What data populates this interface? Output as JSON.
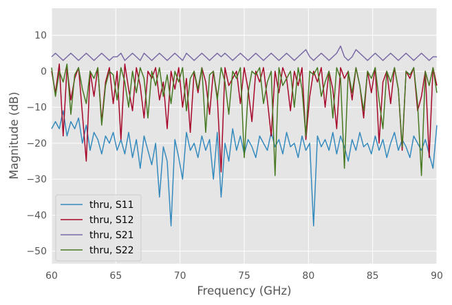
{
  "chart_data": {
    "type": "line",
    "title": "",
    "xlabel": "Frequency (GHz)",
    "ylabel": "Magnitude (dB)",
    "xlim": [
      60,
      90
    ],
    "ylim": [
      -53.5,
      17.5
    ],
    "grid": true,
    "legend_position": "lower-left",
    "x_ticks": [
      60,
      65,
      70,
      75,
      80,
      85,
      90
    ],
    "y_ticks": [
      10,
      0,
      -10,
      -20,
      -30,
      -40,
      -50
    ],
    "x_tick_labels": [
      "60",
      "65",
      "70",
      "75",
      "80",
      "85",
      "90"
    ],
    "y_tick_labels": [
      "10",
      "0",
      "−10",
      "−20",
      "−30",
      "−40",
      "−50"
    ],
    "x": [
      60.0,
      60.3,
      60.6,
      60.9,
      61.2,
      61.5,
      61.8,
      62.1,
      62.4,
      62.7,
      63.0,
      63.3,
      63.6,
      63.9,
      64.2,
      64.5,
      64.8,
      65.1,
      65.4,
      65.7,
      66.0,
      66.3,
      66.6,
      66.9,
      67.2,
      67.5,
      67.8,
      68.1,
      68.4,
      68.7,
      69.0,
      69.3,
      69.6,
      69.9,
      70.2,
      70.5,
      70.8,
      71.1,
      71.4,
      71.7,
      72.0,
      72.3,
      72.6,
      72.9,
      73.2,
      73.5,
      73.8,
      74.1,
      74.4,
      74.7,
      75.0,
      75.3,
      75.6,
      75.9,
      76.2,
      76.5,
      76.8,
      77.1,
      77.4,
      77.7,
      78.0,
      78.3,
      78.6,
      78.9,
      79.2,
      79.5,
      79.8,
      80.1,
      80.4,
      80.7,
      81.0,
      81.3,
      81.6,
      81.9,
      82.2,
      82.5,
      82.8,
      83.1,
      83.4,
      83.7,
      84.0,
      84.3,
      84.6,
      84.9,
      85.2,
      85.5,
      85.8,
      86.1,
      86.4,
      86.7,
      87.0,
      87.3,
      87.6,
      87.9,
      88.2,
      88.5,
      88.8,
      89.1,
      89.4,
      89.7,
      90.0
    ],
    "series": [
      {
        "name": "thru, S11",
        "color": "#348ABD",
        "values": [
          -16,
          -14,
          -16,
          -11,
          -18,
          -14,
          -16,
          -13,
          -20,
          -15,
          -22,
          -17,
          -19,
          -23,
          -18,
          -20,
          -17,
          -22,
          -19,
          -23,
          -17,
          -24,
          -19,
          -27,
          -18,
          -22,
          -26,
          -20,
          -35,
          -21,
          -25,
          -43,
          -19,
          -24,
          -30,
          -17,
          -22,
          -20,
          -24,
          -18,
          -22,
          -19,
          -30,
          -17,
          -35,
          -20,
          -25,
          -16,
          -22,
          -18,
          -23,
          -19,
          -21,
          -24,
          -18,
          -20,
          -22,
          -17,
          -21,
          -19,
          -23,
          -17,
          -21,
          -20,
          -24,
          -18,
          -22,
          -20,
          -43,
          -18,
          -21,
          -19,
          -22,
          -17,
          -23,
          -18,
          -21,
          -25,
          -19,
          -22,
          -17,
          -21,
          -20,
          -23,
          -18,
          -22,
          -19,
          -24,
          -20,
          -17,
          -22,
          -19,
          -21,
          -24,
          -18,
          -20,
          -22,
          -19,
          -23,
          -27,
          -15
        ]
      },
      {
        "name": "thru, S12",
        "color": "#A60628",
        "values": [
          0,
          -6,
          2,
          -18,
          1,
          -8,
          -2,
          1,
          -12,
          -25,
          0,
          -7,
          1,
          -14,
          -3,
          1,
          -9,
          0,
          -19,
          2,
          -5,
          -11,
          1,
          -4,
          -13,
          0,
          -2,
          1,
          -8,
          -3,
          -16,
          0,
          -5,
          1,
          -10,
          -2,
          -17,
          0,
          -6,
          1,
          -3,
          -12,
          0,
          -7,
          -28,
          1,
          -4,
          -2,
          0,
          -9,
          1,
          -5,
          -14,
          0,
          -3,
          1,
          -8,
          -18,
          0,
          -6,
          1,
          -2,
          -11,
          0,
          -4,
          1,
          -19,
          -7,
          0,
          -3,
          1,
          -10,
          0,
          -5,
          -16,
          1,
          -2,
          0,
          -8,
          1,
          -4,
          -13,
          0,
          -6,
          1,
          -20,
          -3,
          0,
          -9,
          1,
          -5,
          -22,
          0,
          -2,
          1,
          -11,
          -7,
          0,
          -24,
          1,
          -4
        ]
      },
      {
        "name": "thru, S21",
        "color": "#7A68A6",
        "values": [
          4,
          5,
          4,
          3,
          4,
          5,
          4,
          3,
          4,
          5,
          4,
          3,
          4,
          5,
          4,
          3,
          4,
          4,
          5,
          3,
          4,
          5,
          4,
          3,
          5,
          4,
          3,
          4,
          5,
          4,
          3,
          4,
          5,
          4,
          3,
          5,
          4,
          3,
          4,
          5,
          4,
          3,
          4,
          5,
          4,
          5,
          4,
          3,
          4,
          5,
          4,
          3,
          4,
          5,
          4,
          3,
          4,
          5,
          4,
          3,
          4,
          5,
          4,
          3,
          4,
          5,
          6,
          4,
          3,
          4,
          5,
          4,
          3,
          4,
          5,
          7,
          4,
          3,
          4,
          6,
          5,
          4,
          3,
          4,
          5,
          4,
          3,
          4,
          5,
          4,
          3,
          4,
          5,
          4,
          3,
          4,
          5,
          4,
          3,
          4,
          4
        ]
      },
      {
        "name": "thru, S22",
        "color": "#467821",
        "values": [
          1,
          -7,
          0,
          -3,
          2,
          -12,
          -1,
          1,
          -5,
          -9,
          0,
          -2,
          1,
          -15,
          -4,
          0,
          -1,
          -8,
          1,
          -3,
          -10,
          0,
          -6,
          1,
          -2,
          -13,
          0,
          -4,
          1,
          -7,
          -1,
          -9,
          0,
          -3,
          1,
          -11,
          -2,
          0,
          -5,
          1,
          -17,
          -1,
          0,
          -8,
          1,
          -3,
          -12,
          0,
          -2,
          1,
          -24,
          -6,
          0,
          -1,
          1,
          -9,
          -3,
          0,
          -29,
          1,
          -4,
          -2,
          0,
          -10,
          1,
          -5,
          -18,
          0,
          -1,
          1,
          -7,
          -3,
          0,
          -13,
          1,
          -2,
          -27,
          0,
          -6,
          1,
          -4,
          -11,
          0,
          -2,
          1,
          -8,
          -16,
          0,
          -3,
          1,
          -5,
          -21,
          0,
          -1,
          1,
          -9,
          -29,
          0,
          -4,
          1,
          -6
        ]
      }
    ],
    "legend_entries": [
      "thru, S11",
      "thru, S12",
      "thru, S21",
      "thru, S22"
    ]
  }
}
